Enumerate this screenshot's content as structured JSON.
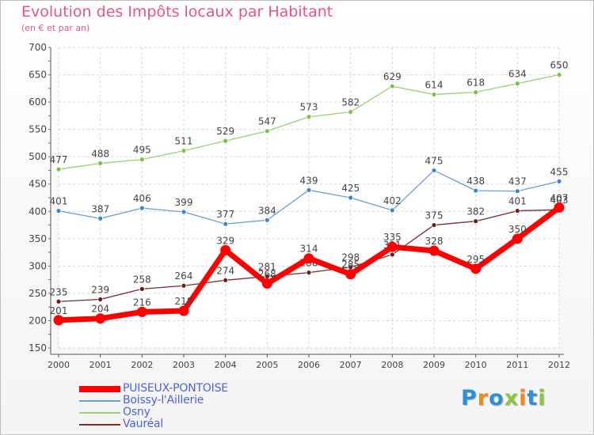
{
  "title": "Evolution des Impôts locaux par Habitant",
  "subtitle": "(en € et par an)",
  "logo": {
    "letters": [
      "P",
      "r",
      "o",
      "x",
      "i",
      "t",
      "i"
    ],
    "colors": [
      "#2e8fd6",
      "#f08a1c",
      "#2e8fd6",
      "#8cc63f",
      "#f08a1c",
      "#2e8fd6",
      "#8cc63f"
    ]
  },
  "chart_data": {
    "type": "line",
    "title": "Evolution des Impôts locaux par Habitant",
    "subtitle": "(en € et par an)",
    "x": [
      "2000",
      "2001",
      "2002",
      "2003",
      "2004",
      "2005",
      "2006",
      "2007",
      "2008",
      "2009",
      "2010",
      "2011",
      "2012"
    ],
    "ylim": [
      150,
      700
    ],
    "yticks": [
      150,
      200,
      250,
      300,
      350,
      400,
      450,
      500,
      550,
      600,
      650,
      700
    ],
    "grid": true,
    "legend": "bottom-left",
    "series": [
      {
        "name": "PUISEUX-PONTOISE",
        "color": "#ff0000",
        "values": [
          201,
          204,
          216,
          218,
          329,
          268,
          314,
          285,
          335,
          328,
          295,
          350,
          407
        ]
      },
      {
        "name": "Boissy-l'Aillerie",
        "color": "#6a9fd2",
        "values": [
          401,
          387,
          406,
          399,
          377,
          384,
          439,
          425,
          402,
          475,
          438,
          437,
          455
        ]
      },
      {
        "name": "Osny",
        "color": "#9ad06e",
        "values": [
          477,
          488,
          495,
          511,
          529,
          547,
          573,
          582,
          629,
          614,
          618,
          634,
          650
        ]
      },
      {
        "name": "Vauréal",
        "color": "#7a2a2a",
        "values": [
          235,
          239,
          258,
          264,
          274,
          281,
          288,
          298,
          321,
          375,
          382,
          401,
          403
        ]
      }
    ]
  }
}
